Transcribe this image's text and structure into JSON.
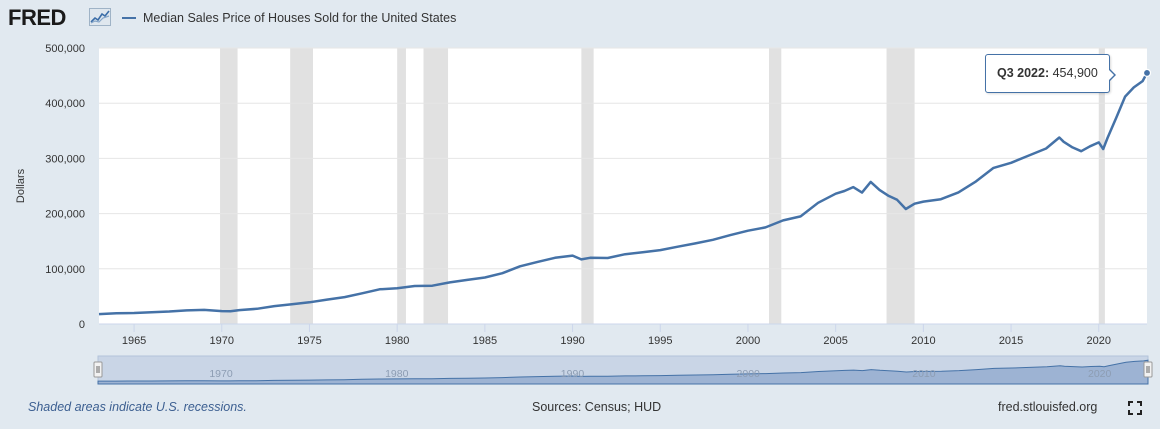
{
  "header": {
    "logo_text": "FRED",
    "series_title": "Median Sales Price of Houses Sold for the United States"
  },
  "tooltip": {
    "period": "Q3 2022:",
    "value": "454,900"
  },
  "footer": {
    "recession_note": "Shaded areas indicate U.S. recessions.",
    "sources": "Sources: Census; HUD",
    "site": "fred.stlouisfed.org"
  },
  "colors": {
    "line": "#4572a7",
    "recession": "#e1e1e1",
    "background": "#e1e9f0"
  },
  "chart_data": {
    "type": "line",
    "title": "",
    "xlabel": "",
    "ylabel": "Dollars",
    "xlim": [
      1963.0,
      2022.75
    ],
    "ylim": [
      0,
      500000
    ],
    "y_ticks": [
      0,
      100000,
      200000,
      300000,
      400000,
      500000
    ],
    "y_tick_labels": [
      "0",
      "100,000",
      "200,000",
      "300,000",
      "400,000",
      "500,000"
    ],
    "x_ticks": [
      1965,
      1970,
      1975,
      1980,
      1985,
      1990,
      1995,
      2000,
      2005,
      2010,
      2015,
      2020
    ],
    "x_tick_labels": [
      "1965",
      "1970",
      "1975",
      "1980",
      "1985",
      "1990",
      "1995",
      "2000",
      "2005",
      "2010",
      "2015",
      "2020"
    ],
    "navigator_labels": [
      "1970",
      "1980",
      "1990",
      "2000",
      "2010",
      "2020"
    ],
    "recessions": [
      [
        1969.9,
        1970.9
      ],
      [
        1973.9,
        1975.2
      ],
      [
        1980.0,
        1980.5
      ],
      [
        1981.5,
        1982.9
      ],
      [
        1990.5,
        1991.2
      ],
      [
        2001.2,
        2001.9
      ],
      [
        2007.9,
        2009.5
      ],
      [
        2020.0,
        2020.35
      ]
    ],
    "series": [
      {
        "name": "Median Sales Price of Houses Sold for the United States",
        "x": [
          1963.0,
          1964.0,
          1965.0,
          1966.0,
          1967.0,
          1968.0,
          1969.0,
          1970.0,
          1970.5,
          1971.0,
          1972.0,
          1973.0,
          1974.0,
          1975.0,
          1976.0,
          1977.0,
          1978.0,
          1979.0,
          1980.0,
          1981.0,
          1982.0,
          1983.0,
          1984.0,
          1985.0,
          1986.0,
          1987.0,
          1988.0,
          1989.0,
          1990.0,
          1990.5,
          1991.0,
          1992.0,
          1993.0,
          1994.0,
          1995.0,
          1996.0,
          1997.0,
          1998.0,
          1999.0,
          2000.0,
          2001.0,
          2002.0,
          2003.0,
          2004.0,
          2005.0,
          2005.5,
          2006.0,
          2006.5,
          2007.0,
          2007.5,
          2008.0,
          2008.5,
          2009.0,
          2009.5,
          2010.0,
          2011.0,
          2012.0,
          2013.0,
          2014.0,
          2015.0,
          2016.0,
          2017.0,
          2017.75,
          2018.0,
          2018.5,
          2019.0,
          2019.5,
          2020.0,
          2020.25,
          2020.5,
          2021.0,
          2021.5,
          2022.0,
          2022.5,
          2022.75
        ],
        "values": [
          18000,
          19300,
          20000,
          21400,
          22700,
          24700,
          25600,
          23400,
          23000,
          25200,
          27600,
          32500,
          35900,
          39300,
          44200,
          48800,
          55700,
          62900,
          64600,
          68900,
          69300,
          75300,
          79900,
          84300,
          92000,
          104500,
          112500,
          120000,
          124000,
          117000,
          120000,
          119500,
          126500,
          130000,
          133900,
          140000,
          146000,
          152500,
          161000,
          169000,
          175000,
          187600,
          195000,
          219600,
          236000,
          241000,
          248000,
          238000,
          257400,
          243000,
          232400,
          225000,
          208400,
          218000,
          221800,
          226000,
          238400,
          258400,
          282800,
          292000,
          305000,
          318000,
          337900,
          330000,
          320000,
          313000,
          322000,
          329000,
          317000,
          337000,
          374000,
          412000,
          428700,
          440000,
          454900
        ]
      }
    ]
  }
}
